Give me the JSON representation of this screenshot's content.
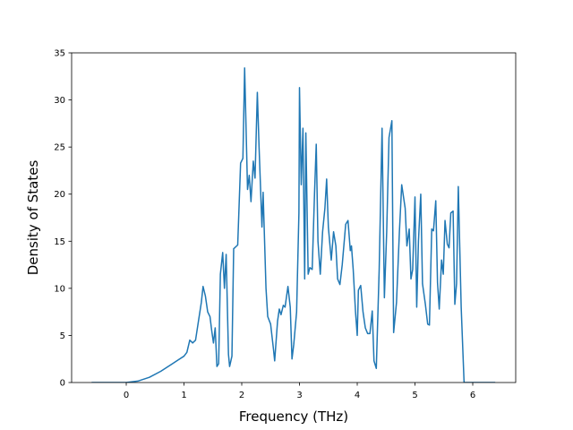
{
  "chart_data": {
    "type": "line",
    "xlabel": "Frequency (THz)",
    "ylabel": "Density of States",
    "color": "#1f77b4",
    "xlim": [
      -0.946,
      6.744
    ],
    "ylim": [
      0,
      35
    ],
    "xticks": [
      0,
      1,
      2,
      3,
      4,
      5,
      6
    ],
    "yticks": [
      0,
      5,
      10,
      15,
      20,
      25,
      30,
      35
    ],
    "grid": false,
    "x": [
      -0.6,
      -0.3,
      0,
      0.2,
      0.4,
      0.6,
      0.8,
      0.9,
      1.0,
      1.05,
      1.1,
      1.15,
      1.2,
      1.25,
      1.3,
      1.33,
      1.37,
      1.41,
      1.45,
      1.48,
      1.51,
      1.54,
      1.57,
      1.6,
      1.63,
      1.67,
      1.7,
      1.73,
      1.77,
      1.79,
      1.83,
      1.86,
      1.93,
      1.98,
      2.02,
      2.05,
      2.1,
      2.13,
      2.16,
      2.2,
      2.23,
      2.27,
      2.3,
      2.35,
      2.37,
      2.42,
      2.45,
      2.5,
      2.55,
      2.57,
      2.62,
      2.65,
      2.68,
      2.72,
      2.75,
      2.8,
      2.84,
      2.87,
      2.9,
      2.95,
      2.99,
      3.0,
      3.03,
      3.06,
      3.09,
      3.11,
      3.15,
      3.18,
      3.22,
      3.26,
      3.29,
      3.32,
      3.36,
      3.4,
      3.44,
      3.47,
      3.5,
      3.55,
      3.59,
      3.63,
      3.66,
      3.7,
      3.74,
      3.8,
      3.84,
      3.88,
      3.9,
      3.93,
      3.97,
      4.0,
      4.02,
      4.06,
      4.1,
      4.14,
      4.18,
      4.22,
      4.26,
      4.29,
      4.33,
      4.38,
      4.43,
      4.47,
      4.51,
      4.55,
      4.6,
      4.63,
      4.68,
      4.73,
      4.77,
      4.83,
      4.86,
      4.9,
      4.93,
      4.96,
      5.0,
      5.03,
      5.06,
      5.1,
      5.13,
      5.18,
      5.22,
      5.25,
      5.29,
      5.32,
      5.36,
      5.39,
      5.42,
      5.46,
      5.49,
      5.52,
      5.56,
      5.59,
      5.62,
      5.66,
      5.69,
      5.72,
      5.75,
      5.8,
      5.85,
      6.0,
      6.39
    ],
    "values": [
      0,
      0,
      0,
      0.15,
      0.55,
      1.2,
      2.0,
      2.4,
      2.8,
      3.2,
      4.5,
      4.2,
      4.5,
      6.5,
      8.5,
      10.2,
      9.2,
      7.5,
      7.0,
      5.5,
      4.2,
      5.8,
      1.7,
      2.0,
      11.5,
      13.8,
      10,
      13.6,
      3.0,
      1.7,
      2.8,
      14.2,
      14.6,
      23.3,
      23.8,
      33.4,
      20.5,
      22,
      19.2,
      23.5,
      21.7,
      30.8,
      25,
      16.5,
      20.2,
      10,
      7,
      6.2,
      3.5,
      2.3,
      6.5,
      7.8,
      7.2,
      8.2,
      8,
      10.2,
      8,
      2.5,
      4,
      7.5,
      18,
      31.3,
      21,
      27,
      11,
      26.5,
      11.5,
      12.2,
      12,
      20,
      25.3,
      15,
      11.5,
      16,
      18.5,
      21.6,
      16.5,
      13,
      16,
      14.5,
      11,
      10.4,
      12.5,
      16.8,
      17.2,
      14,
      14.5,
      12,
      7.5,
      5,
      9.8,
      10.3,
      7.5,
      5.8,
      5.2,
      5.2,
      7.6,
      2.3,
      1.5,
      12,
      27,
      9,
      16,
      26,
      27.8,
      5.3,
      8.5,
      16,
      21,
      18.5,
      14.5,
      16.3,
      11,
      12,
      19.7,
      8,
      15,
      20,
      10.5,
      8.3,
      6.2,
      6.1,
      16.3,
      16.1,
      19.3,
      10.6,
      7.8,
      13,
      11.5,
      17.2,
      14.7,
      14.3,
      18,
      18.2,
      8.3,
      10.5,
      20.8,
      8,
      0,
      0,
      0
    ]
  }
}
